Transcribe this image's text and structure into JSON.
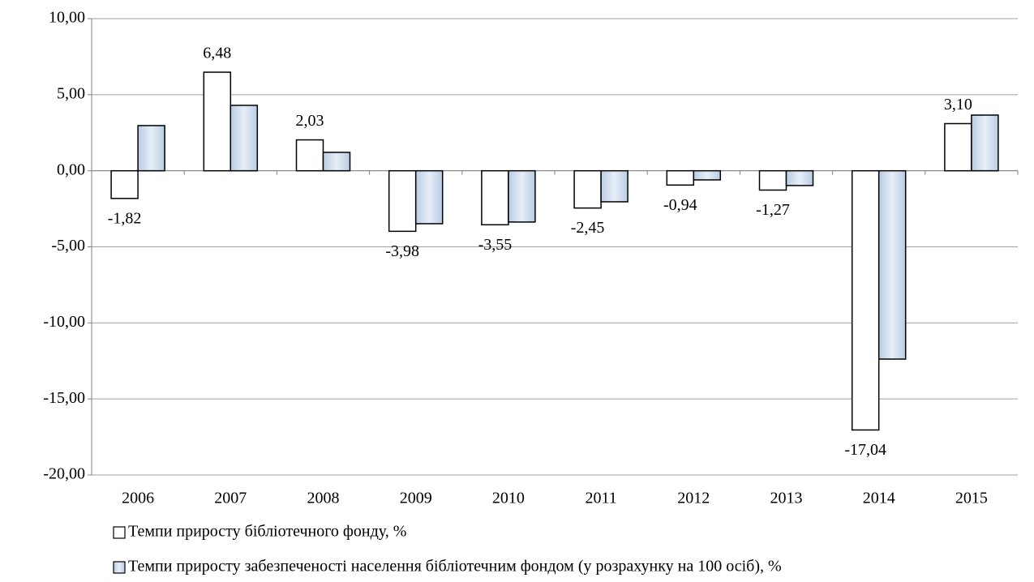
{
  "chart_data": {
    "type": "bar",
    "categories": [
      "2006",
      "2007",
      "2008",
      "2009",
      "2010",
      "2011",
      "2012",
      "2013",
      "2014",
      "2015"
    ],
    "series": [
      {
        "name": "Темпи приросту бібліотечного фонду, %",
        "color": "#ffffff",
        "values": [
          -1.82,
          6.48,
          2.03,
          -3.98,
          -3.55,
          -2.45,
          -0.94,
          -1.27,
          -17.04,
          3.1
        ],
        "value_labels": [
          "-1,82",
          "6,48",
          "2,03",
          "-3,98",
          "-3,55",
          "-2,45",
          "-0,94",
          "-1,27",
          "-17,04",
          "3,10"
        ]
      },
      {
        "name": "Темпи приросту забезпеченості населення бібліотечним фондом (у розрахунку на 100 осіб), %",
        "color": "#b8cce4",
        "values": [
          2.97,
          4.3,
          1.21,
          -3.48,
          -3.37,
          -2.04,
          -0.6,
          -0.97,
          -12.38,
          3.66
        ]
      }
    ],
    "ylim": [
      -20,
      10
    ],
    "yticks": [
      {
        "value": -20,
        "label": "-20,00"
      },
      {
        "value": -15,
        "label": "-15,00"
      },
      {
        "value": -10,
        "label": "-10,00"
      },
      {
        "value": -5,
        "label": "-5,00"
      },
      {
        "value": 0,
        "label": "0,00"
      },
      {
        "value": 5,
        "label": "5,00"
      },
      {
        "value": 10,
        "label": "10,00"
      }
    ],
    "grid": true,
    "legend": "bottom"
  }
}
